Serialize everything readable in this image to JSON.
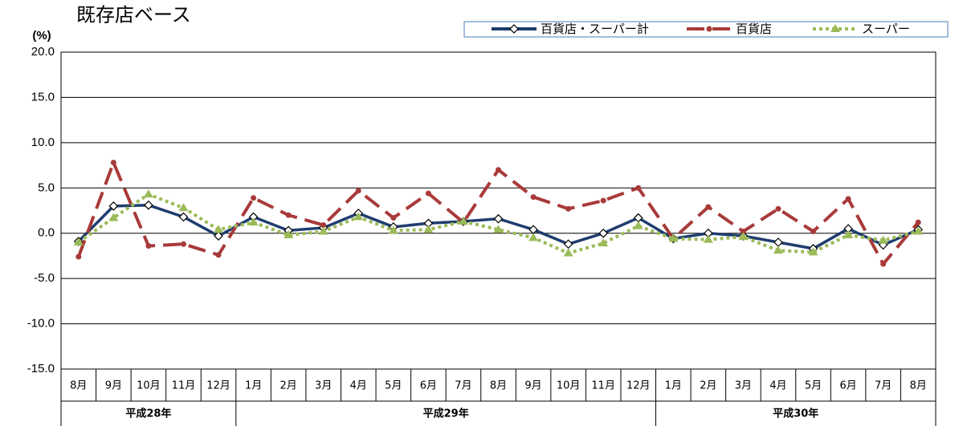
{
  "chart_data": {
    "type": "line",
    "title": "既存店ベース",
    "y_unit": "(%)",
    "categories": [
      "8月",
      "9月",
      "10月",
      "11月",
      "12月",
      "1月",
      "2月",
      "3月",
      "4月",
      "5月",
      "6月",
      "7月",
      "8月",
      "9月",
      "10月",
      "11月",
      "12月",
      "1月",
      "2月",
      "3月",
      "4月",
      "5月",
      "6月",
      "7月",
      "8月"
    ],
    "groups": [
      {
        "name": "平成28年",
        "span": 5
      },
      {
        "name": "平成29年",
        "span": 12
      },
      {
        "name": "平成30年",
        "span": 8
      }
    ],
    "series": [
      {
        "name": "百貨店・スーパー計",
        "color": "#1f3d6e",
        "marker": "diamond",
        "dash": "solid",
        "values": [
          -0.9,
          3.0,
          3.1,
          1.8,
          -0.3,
          1.8,
          0.3,
          0.6,
          2.2,
          0.7,
          1.1,
          1.3,
          1.6,
          0.4,
          -1.2,
          0.0,
          1.7,
          -0.6,
          0.0,
          -0.3,
          -1.0,
          -1.7,
          0.5,
          -1.3,
          0.4
        ]
      },
      {
        "name": "百貨店",
        "color": "#a93a3a",
        "marker": "circle",
        "dash": "dashed",
        "values": [
          -2.6,
          7.8,
          -1.4,
          -1.2,
          -2.4,
          3.9,
          2.0,
          0.9,
          4.7,
          1.7,
          4.4,
          1.2,
          7.0,
          4.0,
          2.7,
          3.6,
          5.0,
          -0.6,
          2.9,
          0.2,
          2.7,
          0.2,
          3.8,
          -3.4,
          1.2
        ]
      },
      {
        "name": "スーパー",
        "color": "#9bbb59",
        "marker": "triangle",
        "dash": "dotted",
        "values": [
          -1.0,
          1.7,
          4.3,
          2.8,
          0.4,
          1.2,
          -0.2,
          0.2,
          1.8,
          0.3,
          0.4,
          1.3,
          0.4,
          -0.5,
          -2.2,
          -1.1,
          0.8,
          -0.6,
          -0.7,
          -0.4,
          -1.9,
          -2.1,
          -0.2,
          -0.8,
          0.2
        ]
      }
    ],
    "ylim": [
      -15,
      20
    ],
    "yticks": [
      {
        "value": -15,
        "label": "-15.0"
      },
      {
        "value": -10,
        "label": "-10.0"
      },
      {
        "value": -5,
        "label": "-5.0"
      },
      {
        "value": 0,
        "label": "0.0"
      },
      {
        "value": 5,
        "label": "5.0"
      },
      {
        "value": 10,
        "label": "10.0"
      },
      {
        "value": 15,
        "label": "15.0"
      },
      {
        "value": 20,
        "label": "20.0"
      }
    ],
    "grid": true
  }
}
